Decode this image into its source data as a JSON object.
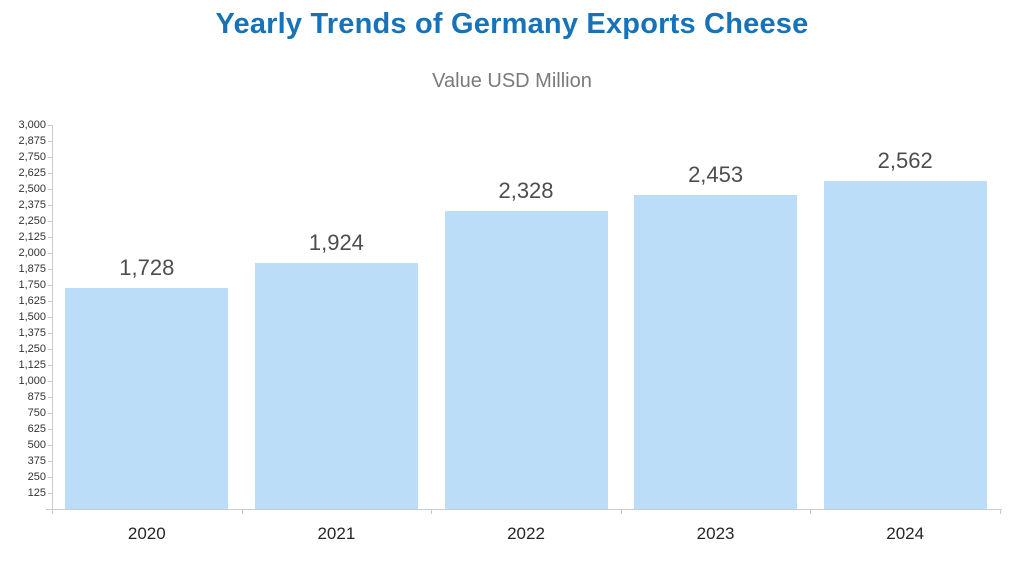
{
  "header": {
    "title": "Yearly Trends of Germany Exports Cheese",
    "title_color": "#1673B9",
    "subtitle": "Value USD Million",
    "subtitle_color": "#7A7A7A"
  },
  "chart_data": {
    "type": "bar",
    "title": "Yearly Trends of Germany Exports Cheese",
    "subtitle": "Value USD Million",
    "categories": [
      "2020",
      "2021",
      "2022",
      "2023",
      "2024"
    ],
    "values": [
      1728,
      1924,
      2328,
      2453,
      2562
    ],
    "value_labels": [
      "1,728",
      "1,924",
      "2,328",
      "2,453",
      "2,562"
    ],
    "xlabel": "",
    "ylabel": "",
    "ylim": [
      0,
      3000
    ],
    "ytick_step": 125,
    "ytick_labels": [
      "125",
      "250",
      "375",
      "500",
      "625",
      "750",
      "875",
      "1,000",
      "1,125",
      "1,250",
      "1,375",
      "1,500",
      "1,625",
      "1,750",
      "1,875",
      "2,000",
      "2,125",
      "2,250",
      "2,375",
      "2,500",
      "2,625",
      "2,750",
      "2,875",
      "3,000"
    ],
    "grid": false,
    "legend": "none",
    "bar_color": "#BCDDF7",
    "axis_color": "#CBCBCB",
    "value_label_color": "#4D4D4D",
    "ytick_label_color": "#333333",
    "xtick_label_color": "#262626"
  }
}
